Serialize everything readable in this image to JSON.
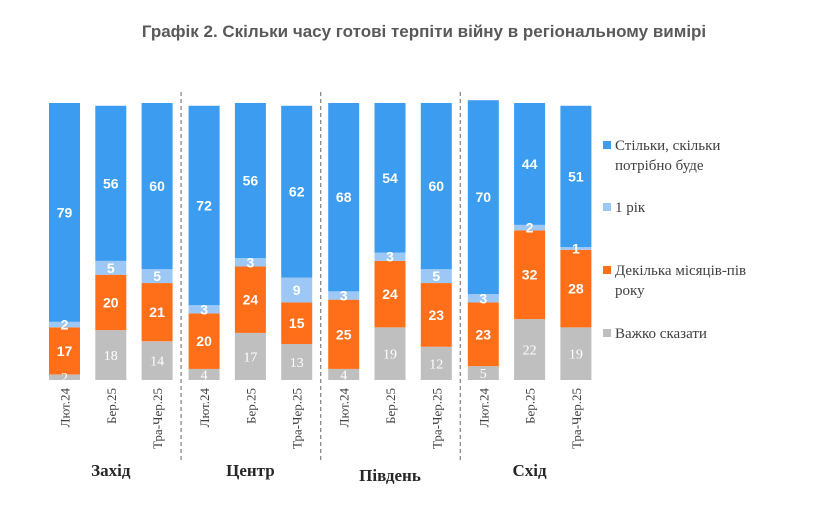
{
  "chart_data": {
    "type": "bar",
    "stacked": true,
    "title": "Графік 2. Скільки часу готові терпіти війну в регіональному вимірі",
    "groups": [
      {
        "name": "Захід",
        "categories": [
          "Лют.24",
          "Бер.25",
          "Тра-Чер.25"
        ]
      },
      {
        "name": "Центр",
        "categories": [
          "Лют.24",
          "Бер.25",
          "Тра-Чер.25"
        ]
      },
      {
        "name": "Південь",
        "categories": [
          "Лют.24",
          "Бер.25",
          "Тра-Чер.25"
        ]
      },
      {
        "name": "Схід",
        "categories": [
          "Лют.24",
          "Бер.25",
          "Тра-Чер.25"
        ]
      }
    ],
    "series": [
      {
        "name": "Важко сказати",
        "color": "#BFBFBF",
        "values": [
          2,
          18,
          14,
          4,
          17,
          13,
          4,
          19,
          12,
          5,
          22,
          19
        ]
      },
      {
        "name": "Декілька місяців-пів року",
        "color": "#FF6F1A",
        "values": [
          17,
          20,
          21,
          20,
          24,
          15,
          25,
          24,
          23,
          23,
          32,
          28
        ]
      },
      {
        "name": "1 рік",
        "color": "#9DC8F5",
        "values": [
          2,
          5,
          5,
          3,
          3,
          9,
          3,
          3,
          5,
          3,
          2,
          1
        ]
      },
      {
        "name": "Стільки, скільки потрібно буде",
        "color": "#3C9CF0",
        "values": [
          79,
          56,
          60,
          72,
          56,
          62,
          68,
          54,
          60,
          70,
          44,
          51
        ]
      }
    ],
    "legend": {
      "position": "right",
      "entries": [
        {
          "series": 3,
          "lines": [
            "Стільки, скільки",
            "потрібно буде"
          ]
        },
        {
          "series": 2,
          "lines": [
            "1 рік"
          ]
        },
        {
          "series": 1,
          "lines": [
            "Декілька місяців-пів",
            "року"
          ]
        },
        {
          "series": 0,
          "lines": [
            "Важко сказати"
          ]
        }
      ]
    },
    "ylim": [
      0,
      100
    ]
  }
}
